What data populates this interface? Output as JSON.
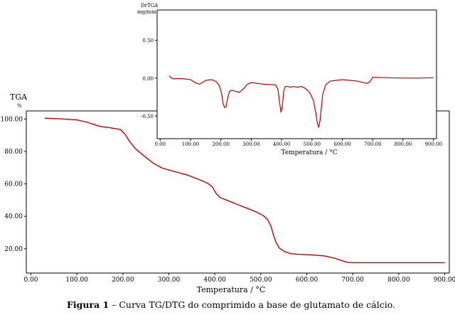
{
  "caption": {
    "bold_part": "Figura 1",
    "rest": " – Curva TG/DTG do comprimido a base de glutamato de cálcio."
  },
  "colors": {
    "curve": "#c00000",
    "axis": "#000000",
    "background": "#ffffff"
  },
  "chart_data": [
    {
      "type": "line",
      "title": "",
      "ylabel": "TGA",
      "yunit": "%",
      "xlabel": "Temperatura / °C",
      "xlim": [
        -10,
        910
      ],
      "ylim": [
        5,
        105
      ],
      "xticks": [
        "0.00",
        "100.00",
        "200.00",
        "300.00",
        "400.00",
        "500.00",
        "600.00",
        "700.00",
        "800.00",
        "900.00"
      ],
      "yticks": [
        "20.00",
        "40.00",
        "60.00",
        "80.00",
        "100.00"
      ],
      "grid": false,
      "series": [
        {
          "x": [
            30,
            60,
            100,
            120,
            150,
            175,
            195,
            205,
            215,
            228,
            245,
            265,
            285,
            310,
            340,
            365,
            385,
            395,
            403,
            412,
            430,
            450,
            470,
            490,
            505,
            515,
            522,
            528,
            533,
            540,
            550,
            565,
            580,
            610,
            640,
            660,
            675,
            688,
            700,
            750,
            800,
            850,
            900
          ],
          "y": [
            100.5,
            100.2,
            99.5,
            98.2,
            95.5,
            94.5,
            93.5,
            90.5,
            86,
            81.5,
            77.5,
            73,
            69.8,
            67.8,
            65.5,
            62.8,
            60.3,
            58,
            54,
            51.5,
            49.5,
            47.2,
            45,
            42.7,
            40.5,
            38,
            34,
            28,
            24,
            20.5,
            18.5,
            17,
            16.6,
            16.2,
            15.5,
            14.2,
            12.8,
            11.6,
            11.4,
            11.4,
            11.4,
            11.4,
            11.4
          ]
        }
      ]
    },
    {
      "type": "line",
      "title": "",
      "ylabel": "DrTGA",
      "yunit": "mg/min",
      "xlabel": "Temperatura / °C",
      "xlim": [
        -10,
        910
      ],
      "ylim": [
        -0.8,
        0.9
      ],
      "xticks": [
        "0.00",
        "100.00",
        "200.00",
        "300.00",
        "400.00",
        "500.00",
        "600.00",
        "700.00",
        "800.00",
        "900.00"
      ],
      "yticks": [
        "0.50",
        "0.00",
        "-0.50"
      ],
      "grid": false,
      "series": [
        {
          "x": [
            30,
            34,
            38,
            45,
            60,
            80,
            100,
            115,
            130,
            150,
            170,
            185,
            195,
            202,
            207,
            212,
            217,
            222,
            228,
            235,
            245,
            260,
            275,
            285,
            295,
            305,
            320,
            340,
            360,
            380,
            388,
            393,
            398,
            402,
            407,
            412,
            420,
            430,
            440,
            450,
            465,
            475,
            485,
            495,
            505,
            512,
            518,
            522,
            526,
            530,
            535,
            545,
            560,
            580,
            600,
            625,
            650,
            670,
            680,
            690,
            700,
            750,
            800,
            850,
            900
          ],
          "y": [
            0.03,
            0.01,
            0.0,
            -0.01,
            -0.005,
            -0.01,
            -0.02,
            -0.06,
            -0.08,
            -0.03,
            -0.02,
            -0.05,
            -0.1,
            -0.2,
            -0.33,
            -0.39,
            -0.38,
            -0.27,
            -0.18,
            -0.16,
            -0.17,
            -0.19,
            -0.14,
            -0.09,
            -0.065,
            -0.06,
            -0.07,
            -0.08,
            -0.085,
            -0.09,
            -0.15,
            -0.32,
            -0.45,
            -0.38,
            -0.17,
            -0.11,
            -0.11,
            -0.12,
            -0.11,
            -0.12,
            -0.11,
            -0.13,
            -0.16,
            -0.21,
            -0.3,
            -0.45,
            -0.6,
            -0.65,
            -0.57,
            -0.42,
            -0.22,
            -0.09,
            -0.04,
            -0.03,
            -0.02,
            -0.03,
            -0.04,
            -0.06,
            -0.07,
            -0.05,
            0.01,
            0.005,
            0.0,
            0.0,
            0.005
          ]
        }
      ]
    }
  ]
}
